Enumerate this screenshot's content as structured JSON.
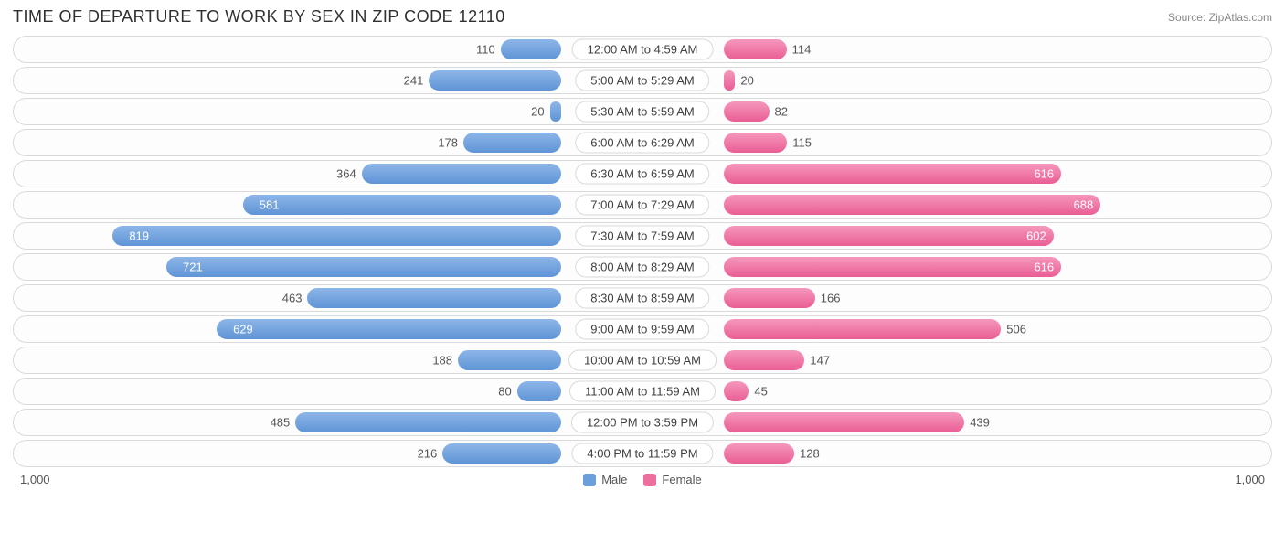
{
  "title": "TIME OF DEPARTURE TO WORK BY SEX IN ZIP CODE 12110",
  "source": "Source: ZipAtlas.com",
  "chart": {
    "type": "diverging-bar",
    "max_value": 1000,
    "male_color": "#6b9fdc",
    "female_color": "#ed6f9f",
    "inside_threshold": 550,
    "background_color": "#ffffff",
    "row_border_color": "#d9d9d9",
    "label_fontsize": 13,
    "title_fontsize": 18,
    "rows": [
      {
        "category": "12:00 AM to 4:59 AM",
        "male": 110,
        "female": 114
      },
      {
        "category": "5:00 AM to 5:29 AM",
        "male": 241,
        "female": 20
      },
      {
        "category": "5:30 AM to 5:59 AM",
        "male": 20,
        "female": 82
      },
      {
        "category": "6:00 AM to 6:29 AM",
        "male": 178,
        "female": 115
      },
      {
        "category": "6:30 AM to 6:59 AM",
        "male": 364,
        "female": 616
      },
      {
        "category": "7:00 AM to 7:29 AM",
        "male": 581,
        "female": 688
      },
      {
        "category": "7:30 AM to 7:59 AM",
        "male": 819,
        "female": 602
      },
      {
        "category": "8:00 AM to 8:29 AM",
        "male": 721,
        "female": 616
      },
      {
        "category": "8:30 AM to 8:59 AM",
        "male": 463,
        "female": 166
      },
      {
        "category": "9:00 AM to 9:59 AM",
        "male": 629,
        "female": 506
      },
      {
        "category": "10:00 AM to 10:59 AM",
        "male": 188,
        "female": 147
      },
      {
        "category": "11:00 AM to 11:59 AM",
        "male": 80,
        "female": 45
      },
      {
        "category": "12:00 PM to 3:59 PM",
        "male": 485,
        "female": 439
      },
      {
        "category": "4:00 PM to 11:59 PM",
        "male": 216,
        "female": 128
      }
    ]
  },
  "axis": {
    "left_label": "1,000",
    "right_label": "1,000"
  },
  "legend": {
    "male": "Male",
    "female": "Female"
  }
}
